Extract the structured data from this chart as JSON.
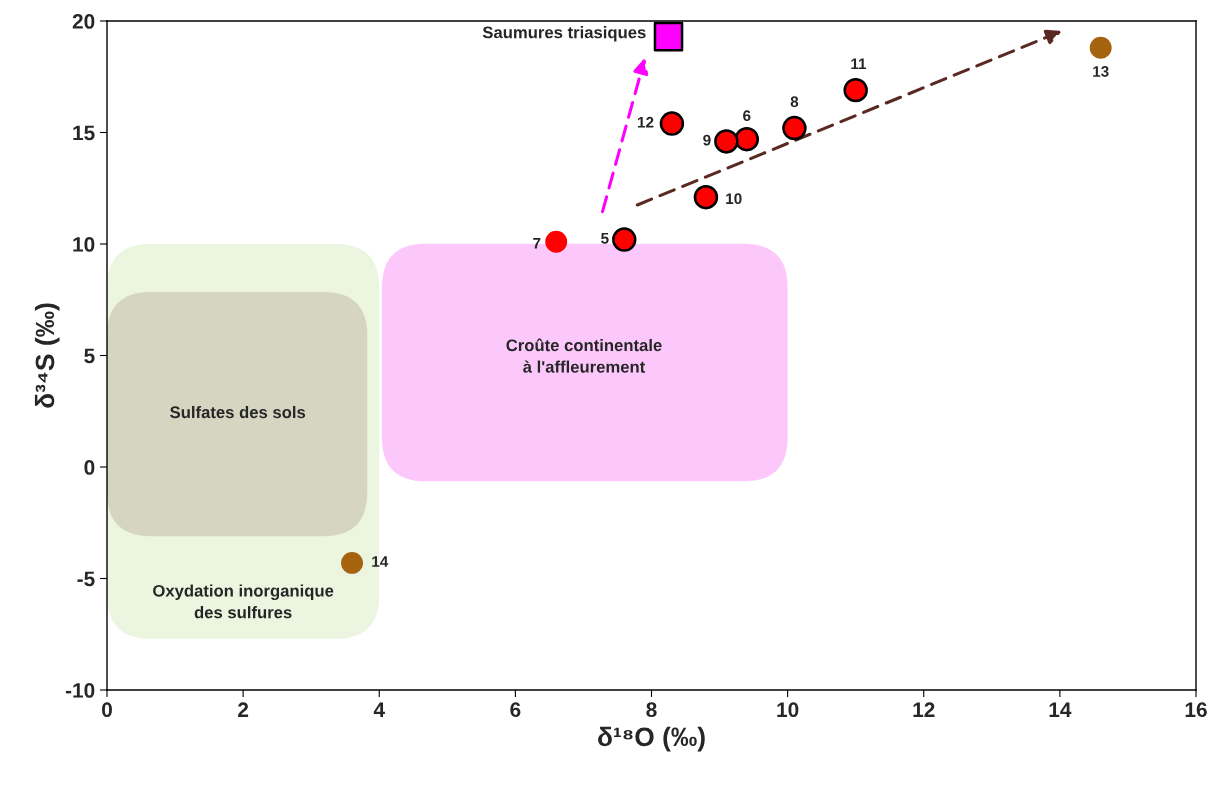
{
  "chart_data": {
    "type": "scatter",
    "xlabel": "δ¹⁸O (‰)",
    "ylabel": "δ³⁴S (‰)",
    "xlim": [
      0,
      16
    ],
    "ylim": [
      -10,
      20
    ],
    "xticks": [
      0,
      2,
      4,
      6,
      8,
      10,
      12,
      14,
      16
    ],
    "yticks": [
      -10,
      -5,
      0,
      5,
      10,
      15,
      20
    ],
    "grid": false,
    "series": [
      {
        "marker": "circle",
        "color": "#ff0000",
        "x": [
          7.6,
          9.4,
          10.1,
          9.1,
          8.8,
          11.0,
          8.3
        ],
        "values": [
          10.2,
          14.7,
          15.2,
          14.6,
          12.1,
          16.9,
          15.4
        ]
      },
      {
        "marker": "circle",
        "color": "#ff0000",
        "x": [
          6.6
        ],
        "values": [
          10.1
        ]
      },
      {
        "marker": "circle",
        "color": "#a5620f",
        "x": [
          14.6,
          3.6
        ],
        "values": [
          18.8,
          -4.3
        ]
      },
      {
        "marker": "square",
        "color": "#ff00ff",
        "x": [
          8.25
        ],
        "values": [
          19.3
        ]
      }
    ],
    "annotations": [
      {
        "text": "5",
        "x": 7.6,
        "y": 10.2
      },
      {
        "text": "6",
        "x": 9.4,
        "y": 14.7
      },
      {
        "text": "8",
        "x": 10.1,
        "y": 15.2
      },
      {
        "text": "9",
        "x": 9.1,
        "y": 14.6
      },
      {
        "text": "10",
        "x": 8.8,
        "y": 12.1
      },
      {
        "text": "11",
        "x": 11.0,
        "y": 16.9
      },
      {
        "text": "12",
        "x": 8.3,
        "y": 15.4
      },
      {
        "text": "7",
        "x": 6.6,
        "y": 10.1
      },
      {
        "text": "13",
        "x": 14.6,
        "y": 18.8
      },
      {
        "text": "14",
        "x": 3.6,
        "y": -4.3
      },
      {
        "text": "Saumures triasiques",
        "x": 8.25,
        "y": 19.3
      },
      "Oxydation inorganique\ndes sulfures",
      "Sulfates des sols",
      "Croûte continentale\nà l'affleurement"
    ]
  }
}
